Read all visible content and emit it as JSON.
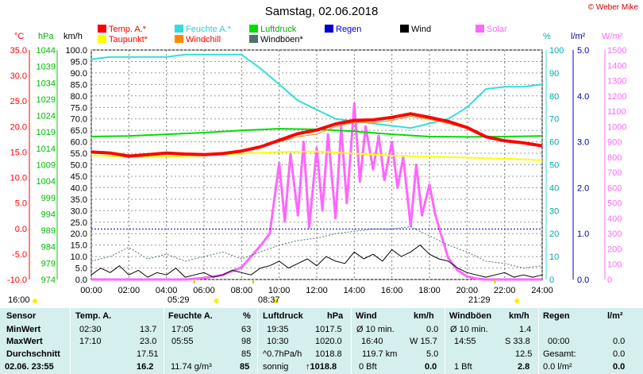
{
  "title": "Samstag, 02.06.2018",
  "copyright": "© Weber Mike",
  "legend": [
    {
      "label": "Temp. A.*",
      "color": "#ff0000"
    },
    {
      "label": "Feuchte A.*",
      "color": "#33dddd"
    },
    {
      "label": "Luftdruck",
      "color": "#00dd00"
    },
    {
      "label": "Regen",
      "color": "#0000cc"
    },
    {
      "label": "Wind",
      "color": "#000000"
    },
    {
      "label": "Solar",
      "color": "#ff66ff"
    },
    {
      "label": "Taupunkt*",
      "color": "#ffff00"
    },
    {
      "label": "Windchill",
      "color": "#ff8800"
    },
    {
      "label": "Windböen*",
      "color": "#507070"
    }
  ],
  "units": {
    "temp": "°C",
    "hpa": "hPa",
    "kmh": "km/h",
    "pct": "%",
    "rain": "l/m²",
    "solar": "W/m²"
  },
  "chart_data": {
    "type": "line",
    "x_ticks": [
      "00:00",
      "02:00",
      "04:00",
      "06:00",
      "08:00",
      "10:00",
      "12:00",
      "14:00",
      "16:00",
      "18:00",
      "20:00",
      "22:00",
      "24:00"
    ],
    "axes": {
      "temp_c": {
        "ticks": [
          "35.0",
          "30.0",
          "25.0",
          "20.0",
          "15.0",
          "10.0",
          "5.0",
          "0.0",
          "-5.0",
          "-10.0"
        ],
        "range": [
          -10,
          35
        ],
        "color": "#ff0000"
      },
      "pressure_hpa": {
        "ticks": [
          "1044",
          "1039",
          "1034",
          "1029",
          "1024",
          "1019",
          "1014",
          "1009",
          "1004",
          "999",
          "994",
          "989",
          "984",
          "979",
          "974"
        ],
        "range": [
          974,
          1044
        ],
        "color": "#00bb00"
      },
      "wind_kmh": {
        "ticks": [
          "100.0",
          "95.0",
          "90.0",
          "85.0",
          "80.0",
          "75.0",
          "70.0",
          "65.0",
          "60.0",
          "55.0",
          "50.0",
          "45.0",
          "40.0",
          "35.0",
          "30.0",
          "25.0",
          "20.0",
          "15.0",
          "10.0",
          "5.0",
          "0.0"
        ],
        "range": [
          0,
          100
        ],
        "color": "#000000"
      },
      "humidity_pct": {
        "ticks": [
          "100",
          "90",
          "80",
          "70",
          "60",
          "50",
          "40",
          "30",
          "20",
          "10",
          "0"
        ],
        "range": [
          0,
          100
        ],
        "color": "#00aaaa"
      },
      "rain_lm2": {
        "ticks": [
          "5.0",
          "4.0",
          "3.0",
          "2.0",
          "1.0",
          "0.0"
        ],
        "range": [
          0,
          5
        ],
        "color": "#0000aa"
      },
      "solar_wm2": {
        "ticks": [
          "1500",
          "1400",
          "1300",
          "1200",
          "1100",
          "1000",
          "900",
          "800",
          "700",
          "600",
          "500",
          "400",
          "300",
          "200",
          "100",
          "0"
        ],
        "range": [
          0,
          1500
        ],
        "color": "#ff66ff"
      }
    },
    "series": [
      {
        "name": "Temp. A.*",
        "axis": "temp_c",
        "color": "#ff0000",
        "x": [
          0,
          1,
          2,
          3,
          4,
          5,
          6,
          7,
          8,
          9,
          10,
          11,
          12,
          13,
          14,
          15,
          16,
          17,
          18,
          19,
          20,
          21,
          22,
          23,
          24
        ],
        "y": [
          15.0,
          14.8,
          14.2,
          14.5,
          14.8,
          14.6,
          14.5,
          14.7,
          15.2,
          16.0,
          17.3,
          18.6,
          19.3,
          20.5,
          21.2,
          21.3,
          21.8,
          22.5,
          21.8,
          21.0,
          19.8,
          18.0,
          17.2,
          16.8,
          16.2
        ]
      },
      {
        "name": "Feuchte A.*",
        "axis": "humidity_pct",
        "color": "#33dddd",
        "x": [
          0,
          1,
          2,
          3,
          4,
          5,
          6,
          7,
          8,
          9,
          10,
          11,
          12,
          13,
          14,
          15,
          16,
          17,
          18,
          19,
          20,
          21,
          22,
          23,
          24
        ],
        "y": [
          96,
          97,
          97,
          97,
          97,
          98,
          98,
          98,
          98,
          92,
          85,
          78,
          74,
          70,
          69,
          68,
          67,
          66,
          68,
          70,
          75,
          83,
          84,
          84,
          85
        ]
      },
      {
        "name": "Luftdruck",
        "axis": "pressure_hpa",
        "color": "#00dd00",
        "x": [
          0,
          2,
          4,
          6,
          8,
          10,
          12,
          14,
          16,
          18,
          20,
          22,
          24
        ],
        "y": [
          1017.6,
          1017.8,
          1018.3,
          1018.8,
          1019.5,
          1020.0,
          1019.8,
          1019.2,
          1018.3,
          1017.6,
          1017.5,
          1017.6,
          1017.8
        ]
      },
      {
        "name": "Taupunkt*",
        "axis": "temp_c",
        "color": "#ffff00",
        "x": [
          0,
          2,
          4,
          6,
          8,
          10,
          12,
          14,
          16,
          18,
          20,
          22,
          24
        ],
        "y": [
          14.3,
          14.1,
          14.1,
          14.3,
          14.7,
          15.0,
          15.1,
          14.7,
          14.3,
          14.1,
          13.9,
          13.7,
          13.4
        ]
      },
      {
        "name": "Windchill",
        "axis": "temp_c",
        "color": "#ff8800",
        "x": [
          0,
          1,
          2,
          3,
          4,
          5,
          6,
          7,
          8,
          9,
          10,
          11,
          12,
          13,
          14,
          15,
          16,
          17,
          18,
          19,
          20,
          21,
          22,
          23,
          24
        ],
        "y": [
          15.0,
          14.8,
          14.2,
          14.5,
          14.8,
          14.6,
          14.5,
          14.7,
          15.2,
          16.0,
          17.0,
          18.0,
          18.5,
          20.0,
          20.8,
          20.8,
          21.2,
          22.0,
          21.4,
          20.6,
          19.6,
          17.9,
          17.2,
          16.8,
          16.2
        ]
      },
      {
        "name": "Wind",
        "axis": "wind_kmh",
        "color": "#000000",
        "x": [
          0,
          0.5,
          1,
          1.5,
          2,
          2.5,
          3,
          3.5,
          4,
          4.5,
          5,
          5.5,
          6,
          6.5,
          7,
          7.5,
          8,
          8.5,
          9,
          9.5,
          10,
          10.5,
          11,
          11.5,
          12,
          12.5,
          13,
          13.5,
          14,
          14.5,
          15,
          15.5,
          16,
          16.5,
          17,
          17.5,
          18,
          18.5,
          19,
          19.5,
          20,
          20.5,
          21,
          21.5,
          22,
          22.5,
          23,
          23.5,
          24
        ],
        "y": [
          2,
          5,
          3,
          6,
          2,
          4,
          1,
          3,
          2,
          5,
          1,
          2,
          3,
          1,
          2,
          4,
          3,
          2,
          5,
          6,
          8,
          5,
          7,
          9,
          6,
          10,
          8,
          7,
          12,
          9,
          11,
          8,
          13,
          10,
          12,
          15,
          11,
          9,
          8,
          5,
          3,
          2,
          1,
          2,
          3,
          1,
          2,
          1,
          2
        ]
      },
      {
        "name": "Windböen*",
        "axis": "wind_kmh",
        "color": "#507070",
        "x": [
          0,
          1,
          2,
          3,
          4,
          5,
          6,
          7,
          8,
          9,
          10,
          11,
          12,
          13,
          14,
          15,
          16,
          17,
          18,
          19,
          20,
          21,
          22,
          23,
          24
        ],
        "y": [
          8,
          10,
          14,
          9,
          11,
          8,
          10,
          12,
          9,
          12,
          15,
          17,
          18,
          20,
          21,
          22,
          22,
          23,
          19,
          15,
          12,
          8,
          7,
          5,
          6
        ]
      },
      {
        "name": "Solar",
        "axis": "solar_wm2",
        "color": "#ff66ff",
        "x": [
          0,
          5,
          6,
          7,
          8,
          8.5,
          9,
          9.5,
          10,
          10.3,
          10.6,
          11,
          11.3,
          11.6,
          12,
          12.3,
          12.6,
          13,
          13.3,
          13.6,
          14,
          14.3,
          14.6,
          15,
          15.3,
          15.6,
          16,
          16.3,
          16.6,
          17,
          17.3,
          17.6,
          18,
          18.3,
          18.6,
          19,
          19.5,
          20,
          20.5,
          21,
          24
        ],
        "y": [
          0,
          0,
          10,
          30,
          80,
          150,
          220,
          300,
          760,
          380,
          820,
          420,
          900,
          340,
          860,
          450,
          950,
          400,
          1000,
          500,
          1150,
          640,
          1000,
          720,
          940,
          650,
          900,
          600,
          800,
          350,
          750,
          420,
          620,
          430,
          300,
          140,
          60,
          20,
          5,
          0,
          0
        ]
      },
      {
        "name": "Regen",
        "axis": "rain_lm2",
        "color": "#0000cc",
        "x": [
          0,
          24
        ],
        "y": [
          1.1,
          1.1
        ]
      }
    ],
    "markers": [
      {
        "label": "05:29",
        "x": 5.48
      },
      {
        "label": "08:37",
        "x": 8.62
      },
      {
        "label": "21:29",
        "x": 21.48
      }
    ],
    "side_label": "16:00"
  },
  "table": {
    "headers": [
      "Sensor",
      "Temp. A.",
      "",
      "Feuchte A.",
      "%",
      "Luftdruck",
      "hPa",
      "Wind",
      "km/h",
      "Windböen",
      "km/h",
      "Regen",
      "l/m²"
    ],
    "rows": [
      [
        "MinWert",
        "02:30",
        "13.7",
        "17:05",
        "63",
        "19:35",
        "1017.5",
        "Ø 10 min.",
        "0.0",
        "Ø 10 min.",
        "1.4",
        "",
        ""
      ],
      [
        "MaxWert",
        "17:10",
        "23.0",
        "05:55",
        "98",
        "10:30",
        "1020.0",
        "16:40",
        "W 15.7",
        "14:55",
        "S 33.8",
        "00:00",
        "0.0"
      ],
      [
        "Durchschnitt",
        "",
        "17.51",
        "",
        "85",
        "^0.7hPa/h",
        "1018.8",
        "119.7 km",
        "5.0",
        "",
        "12.5",
        "Gesamt:",
        "0.0"
      ],
      [
        "02.06. 23:55",
        "",
        "16.2",
        "11.74 g/m³",
        "85",
        "sonnig",
        "↑1018.8",
        "0 Bft",
        "0.0",
        "1 Bft",
        "2.8",
        "0.0 l/m²",
        "0.0"
      ]
    ]
  }
}
